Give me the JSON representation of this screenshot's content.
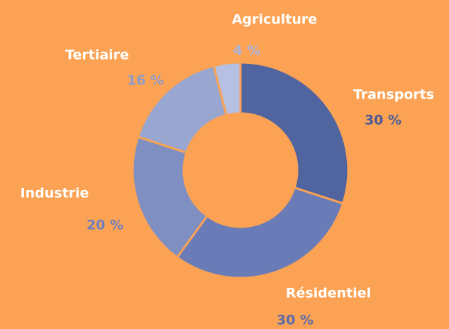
{
  "chart_data": {
    "type": "donut",
    "categories": [
      "Transports",
      "Résidentiel",
      "Industrie",
      "Tertiaire",
      "Agriculture"
    ],
    "values": [
      30,
      30,
      20,
      16,
      4
    ],
    "value_labels": [
      "30 %",
      "30 %",
      "20 %",
      "16 %",
      "4 %"
    ],
    "colors": [
      "#5064a0",
      "#6a7cb8",
      "#7f8fc2",
      "#98a6d0",
      "#b5c0e2"
    ]
  }
}
